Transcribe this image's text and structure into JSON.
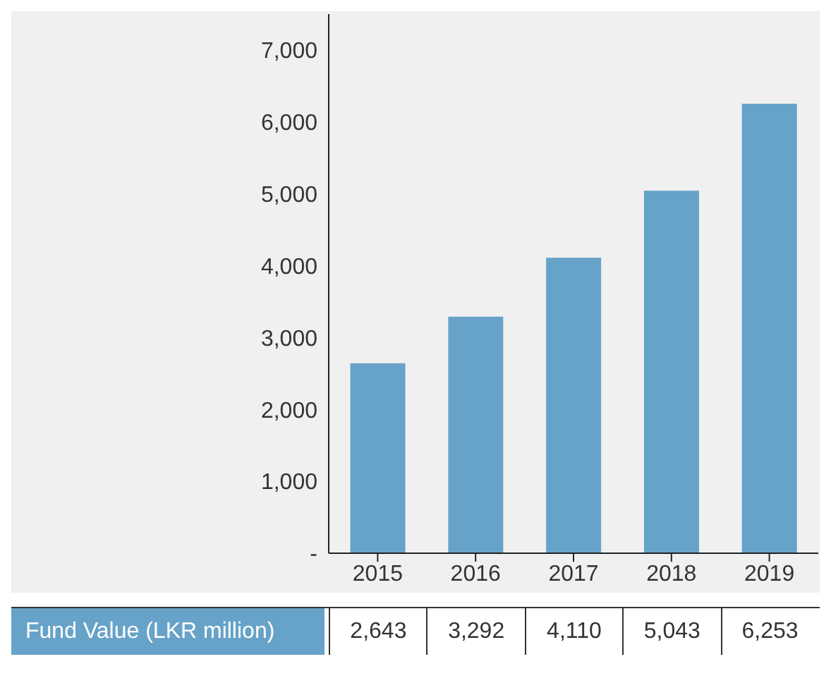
{
  "chart_data": {
    "type": "bar",
    "categories": [
      "2015",
      "2016",
      "2017",
      "2018",
      "2019"
    ],
    "series": [
      {
        "name": "Fund Value (LKR million)",
        "color": "#67a3c8",
        "values": [
          2643,
          3292,
          4110,
          5043,
          6253
        ],
        "value_labels": [
          "2,643",
          "3,292",
          "4,110",
          "5,043",
          "6,253"
        ]
      }
    ],
    "ylim": [
      0,
      7500
    ],
    "yticks": [
      {
        "value": 0,
        "label": "-"
      },
      {
        "value": 1000,
        "label": "1,000"
      },
      {
        "value": 2000,
        "label": "2,000"
      },
      {
        "value": 3000,
        "label": "3,000"
      },
      {
        "value": 4000,
        "label": "4,000"
      },
      {
        "value": 5000,
        "label": "5,000"
      },
      {
        "value": 6000,
        "label": "6,000"
      },
      {
        "value": 7000,
        "label": "7,000"
      }
    ],
    "grid": false,
    "legend": false
  }
}
